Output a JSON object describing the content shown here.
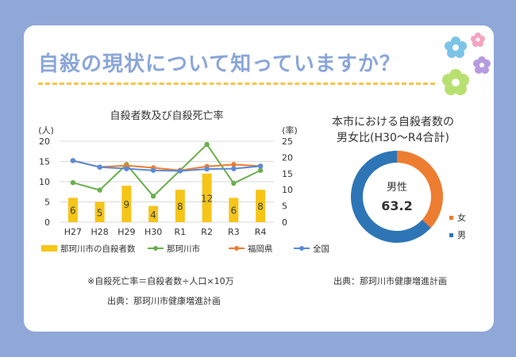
{
  "page": {
    "title": "自殺の現状について知っていますか？"
  },
  "left_panel": {
    "formula_note": "※自殺死亡率＝自殺者数÷人口×10万",
    "source": "出典：那珂川市健康増進計画"
  },
  "right_panel": {
    "title_line1": "本市における自殺者数の",
    "title_line2": "男女比(H30～R4合計)",
    "center_label": "男性",
    "center_value": "63.2",
    "source": "出典：那珂川市健康増進計画"
  },
  "chart_data": [
    {
      "type": "bar+line",
      "title": "自殺者数及び自殺死亡率",
      "y_left_unit": "(人)",
      "y_right_unit": "(率)",
      "categories": [
        "H27",
        "H28",
        "H29",
        "H30",
        "R1",
        "R2",
        "R3",
        "R4"
      ],
      "y_left": {
        "min": 0,
        "max": 20,
        "ticks": [
          0,
          5,
          10,
          15,
          20
        ]
      },
      "y_right": {
        "min": 0,
        "max": 25,
        "ticks": [
          0,
          5,
          10,
          15,
          20,
          25
        ]
      },
      "bars": {
        "name": "那珂川市の自殺者数",
        "color": "#f5c518",
        "values": [
          6,
          5,
          9,
          4,
          8,
          12,
          6,
          8
        ]
      },
      "lines": [
        {
          "name": "那珂川市",
          "color": "#6ab04c",
          "values": [
            12.2,
            9.9,
            17.8,
            8.0,
            16.0,
            24.0,
            12.0,
            16.0
          ]
        },
        {
          "name": "福岡県",
          "color": "#ed7d31",
          "values": [
            19.0,
            17.0,
            17.5,
            16.8,
            16.0,
            17.2,
            17.8,
            17.3
          ]
        },
        {
          "name": "全国",
          "color": "#5b8ad6",
          "values": [
            19.0,
            17.0,
            16.5,
            16.0,
            15.8,
            16.4,
            16.5,
            17.3
          ]
        }
      ],
      "legend": [
        "那珂川市の自殺者数",
        "那珂川市",
        "福岡県",
        "全国"
      ],
      "legend_position": "bottom"
    },
    {
      "type": "donut",
      "slices": [
        {
          "name": "女",
          "value": 36.8,
          "color": "#ed7d31"
        },
        {
          "name": "男",
          "value": 63.2,
          "color": "#2e75b6"
        }
      ],
      "legend_position": "right"
    }
  ]
}
